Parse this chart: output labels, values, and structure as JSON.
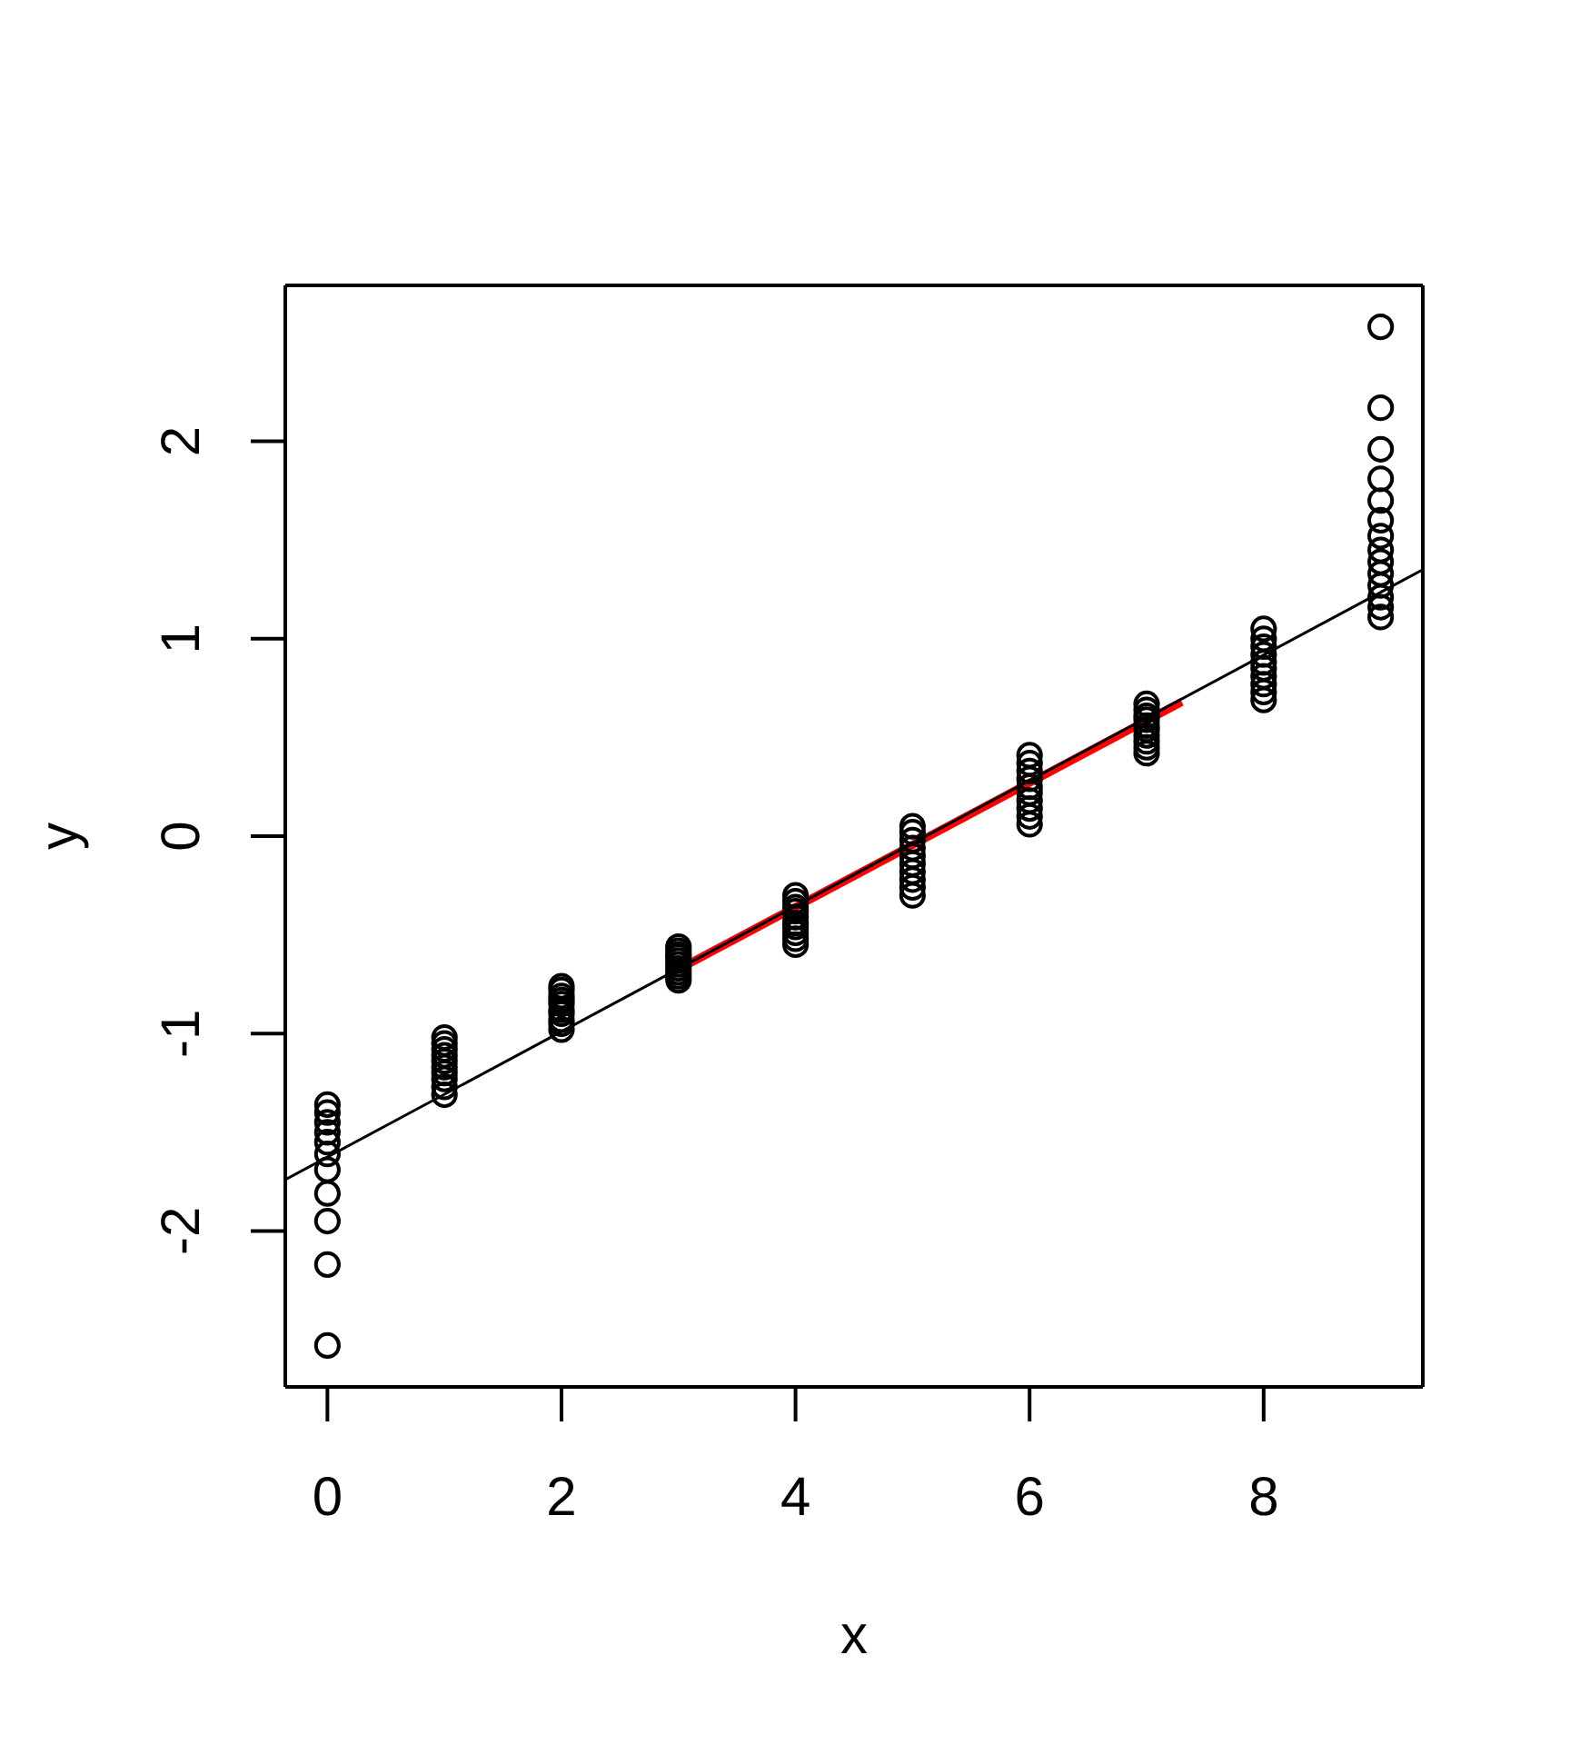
{
  "chart_data": {
    "type": "scatter",
    "xlabel": "x",
    "ylabel": "y",
    "xlim": [
      -0.36,
      9.36
    ],
    "ylim": [
      -2.79,
      2.79
    ],
    "xticks": [
      0,
      2,
      4,
      6,
      8
    ],
    "yticks": [
      -2,
      -1,
      0,
      1,
      2
    ],
    "marker": "circle",
    "series": [
      {
        "color": "#000000",
        "x": [
          0,
          0,
          0,
          0,
          0,
          0,
          0,
          0,
          0,
          0,
          0,
          1,
          1,
          1,
          1,
          1,
          1,
          1,
          1,
          1,
          1,
          2,
          2,
          2,
          2,
          2,
          2,
          2,
          2,
          2,
          2,
          3,
          3,
          3,
          3,
          3,
          3,
          3,
          3,
          3,
          3,
          4,
          4,
          4,
          4,
          4,
          4,
          4,
          4,
          4,
          4,
          5,
          5,
          5,
          5,
          5,
          5,
          5,
          5,
          5,
          5,
          6,
          6,
          6,
          6,
          6,
          6,
          6,
          6,
          6,
          6,
          7,
          7,
          7,
          7,
          7,
          7,
          7,
          7,
          7,
          7,
          8,
          8,
          8,
          8,
          8,
          8,
          8,
          8,
          8,
          8,
          9,
          9,
          9,
          9,
          9,
          9,
          9,
          9,
          9,
          9,
          9,
          9,
          9,
          9
        ],
        "values": [
          -2.58,
          -2.17,
          -1.95,
          -1.81,
          -1.69,
          -1.61,
          -1.55,
          -1.5,
          -1.45,
          -1.4,
          -1.36,
          -1.31,
          -1.27,
          -1.23,
          -1.2,
          -1.17,
          -1.14,
          -1.11,
          -1.08,
          -1.05,
          -1.02,
          -0.98,
          -0.95,
          -0.93,
          -0.9,
          -0.88,
          -0.85,
          -0.83,
          -0.81,
          -0.78,
          -0.76,
          -0.73,
          -0.71,
          -0.69,
          -0.67,
          -0.65,
          -0.63,
          -0.61,
          -0.6,
          -0.58,
          -0.56,
          -0.55,
          -0.52,
          -0.49,
          -0.46,
          -0.44,
          -0.41,
          -0.38,
          -0.36,
          -0.33,
          -0.3,
          -0.3,
          -0.26,
          -0.22,
          -0.18,
          -0.14,
          -0.1,
          -0.06,
          -0.02,
          0.02,
          0.05,
          0.06,
          0.1,
          0.14,
          0.18,
          0.22,
          0.25,
          0.29,
          0.33,
          0.37,
          0.41,
          0.42,
          0.45,
          0.48,
          0.51,
          0.54,
          0.56,
          0.59,
          0.61,
          0.64,
          0.67,
          0.69,
          0.73,
          0.77,
          0.81,
          0.85,
          0.88,
          0.92,
          0.96,
          1.0,
          1.05,
          1.11,
          1.16,
          1.21,
          1.27,
          1.33,
          1.39,
          1.45,
          1.52,
          1.6,
          1.7,
          1.81,
          1.96,
          2.17,
          2.58
        ]
      },
      {
        "type": "line",
        "marker": "none",
        "color": "#ff0000",
        "x": [
          2.95,
          7.3
        ],
        "values": [
          -0.69,
          0.68
        ]
      },
      {
        "type": "line",
        "marker": "none",
        "color": "#000000",
        "x": [
          -0.36,
          9.36
        ],
        "values": [
          -1.74,
          1.35
        ]
      }
    ]
  }
}
